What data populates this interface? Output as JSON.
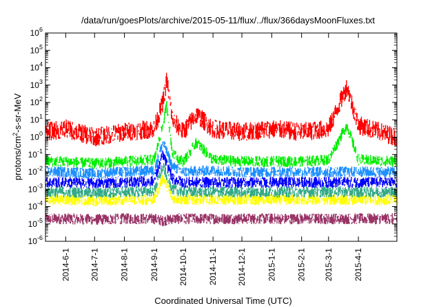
{
  "chart_data": {
    "type": "line",
    "title": "/data/run/goesPlots/archive/2015-05-11/flux/../flux/366daysMoonFluxes.txt",
    "xlabel": "Coordinated Universal Time (UTC)",
    "ylabel_parts": {
      "base": "protons/cm",
      "sup": "2",
      "rest": "-s-sr-MeV"
    },
    "x_range": [
      "2014-05-11",
      "2015-05-11"
    ],
    "x_tick_labels": [
      "2014-6-1",
      "2014-7-1",
      "2014-8-1",
      "2014-9-1",
      "2014-10-1",
      "2014-11-1",
      "2014-12-1",
      "2015-1-1",
      "2015-2-1",
      "2015-3-1",
      "2015-4-1"
    ],
    "y_scale": "log",
    "y_ticks": [
      {
        "base": "10",
        "exp": "-6"
      },
      {
        "base": "10",
        "exp": "-5"
      },
      {
        "base": "10",
        "exp": "-4"
      },
      {
        "base": "10",
        "exp": "-3"
      },
      {
        "base": "10",
        "exp": "-2"
      },
      {
        "base": "10",
        "exp": "-1"
      },
      {
        "base": "10",
        "exp": "0"
      },
      {
        "base": "10",
        "exp": "1"
      },
      {
        "base": "10",
        "exp": "2"
      },
      {
        "base": "10",
        "exp": "3"
      },
      {
        "base": "10",
        "exp": "4"
      },
      {
        "base": "10",
        "exp": "5"
      },
      {
        "base": "10",
        "exp": "6"
      }
    ],
    "ylim": [
      1e-06,
      1000000.0
    ],
    "grid": false,
    "legend": "none",
    "series": [
      {
        "color": "#993366",
        "points": [
          [
            "2014-05-11",
            2e-05
          ],
          [
            "2014-06-01",
            2e-05
          ],
          [
            "2014-07-01",
            1.8e-05
          ],
          [
            "2014-08-01",
            2e-05
          ],
          [
            "2014-09-01",
            2e-05
          ],
          [
            "2014-09-10",
            1.5e-05
          ],
          [
            "2014-09-20",
            2e-05
          ],
          [
            "2014-10-01",
            2e-05
          ],
          [
            "2014-11-01",
            2e-05
          ],
          [
            "2014-12-01",
            2e-05
          ],
          [
            "2015-01-01",
            2e-05
          ],
          [
            "2015-02-01",
            2e-05
          ],
          [
            "2015-03-01",
            2e-05
          ],
          [
            "2015-04-01",
            2e-05
          ],
          [
            "2015-05-11",
            2e-05
          ]
        ]
      },
      {
        "color": "#ffff00",
        "points": [
          [
            "2014-05-11",
            0.00025
          ],
          [
            "2014-06-01",
            0.00025
          ],
          [
            "2014-07-01",
            0.00022
          ],
          [
            "2014-08-01",
            0.00025
          ],
          [
            "2014-09-01",
            0.00025
          ],
          [
            "2014-09-10",
            0.005
          ],
          [
            "2014-09-20",
            0.0003
          ],
          [
            "2014-10-01",
            0.00025
          ],
          [
            "2014-11-01",
            0.00025
          ],
          [
            "2014-12-01",
            0.00025
          ],
          [
            "2015-01-01",
            0.00025
          ],
          [
            "2015-02-01",
            0.00025
          ],
          [
            "2015-03-01",
            0.00025
          ],
          [
            "2015-04-01",
            0.00025
          ],
          [
            "2015-05-11",
            0.00025
          ]
        ]
      },
      {
        "color": "#33aa88",
        "points": [
          [
            "2014-05-11",
            0.0007
          ],
          [
            "2014-06-01",
            0.0007
          ],
          [
            "2014-07-01",
            0.0006
          ],
          [
            "2014-08-01",
            0.0007
          ],
          [
            "2014-09-01",
            0.0008
          ],
          [
            "2014-09-10",
            0.02
          ],
          [
            "2014-09-20",
            0.001
          ],
          [
            "2014-10-01",
            0.0007
          ],
          [
            "2014-11-01",
            0.0007
          ],
          [
            "2014-12-01",
            0.0007
          ],
          [
            "2015-01-01",
            0.0007
          ],
          [
            "2015-02-01",
            0.0007
          ],
          [
            "2015-03-01",
            0.0007
          ],
          [
            "2015-04-01",
            0.0007
          ],
          [
            "2015-05-11",
            0.0007
          ]
        ]
      },
      {
        "color": "#0000ff",
        "points": [
          [
            "2014-05-11",
            0.0025
          ],
          [
            "2014-06-01",
            0.0025
          ],
          [
            "2014-07-01",
            0.0022
          ],
          [
            "2014-08-01",
            0.0025
          ],
          [
            "2014-09-01",
            0.003
          ],
          [
            "2014-09-10",
            0.1
          ],
          [
            "2014-09-20",
            0.004
          ],
          [
            "2014-10-01",
            0.0025
          ],
          [
            "2014-11-01",
            0.0025
          ],
          [
            "2014-12-01",
            0.0025
          ],
          [
            "2015-01-01",
            0.0025
          ],
          [
            "2015-02-01",
            0.0025
          ],
          [
            "2015-03-01",
            0.0025
          ],
          [
            "2015-04-01",
            0.0025
          ],
          [
            "2015-05-11",
            0.0025
          ]
        ]
      },
      {
        "color": "#1e90ff",
        "points": [
          [
            "2014-05-11",
            0.01
          ],
          [
            "2014-06-01",
            0.01
          ],
          [
            "2014-07-01",
            0.008
          ],
          [
            "2014-08-01",
            0.01
          ],
          [
            "2014-09-01",
            0.012
          ],
          [
            "2014-09-10",
            0.5
          ],
          [
            "2014-09-20",
            0.02
          ],
          [
            "2014-10-01",
            0.01
          ],
          [
            "2014-11-01",
            0.012
          ],
          [
            "2014-12-01",
            0.01
          ],
          [
            "2015-01-01",
            0.01
          ],
          [
            "2015-02-01",
            0.01
          ],
          [
            "2015-03-01",
            0.01
          ],
          [
            "2015-04-01",
            0.01
          ],
          [
            "2015-05-11",
            0.01
          ]
        ]
      },
      {
        "color": "#00ee00",
        "points": [
          [
            "2014-05-11",
            0.04
          ],
          [
            "2014-06-01",
            0.04
          ],
          [
            "2014-07-01",
            0.03
          ],
          [
            "2014-08-01",
            0.04
          ],
          [
            "2014-09-01",
            0.05
          ],
          [
            "2014-09-10",
            5
          ],
          [
            "2014-09-14",
            80
          ],
          [
            "2014-09-20",
            0.1
          ],
          [
            "2014-10-01",
            0.04
          ],
          [
            "2014-10-15",
            0.5
          ],
          [
            "2014-11-01",
            0.05
          ],
          [
            "2014-12-01",
            0.04
          ],
          [
            "2015-01-01",
            0.04
          ],
          [
            "2015-02-01",
            0.04
          ],
          [
            "2015-03-01",
            0.05
          ],
          [
            "2015-03-20",
            5
          ],
          [
            "2015-04-01",
            0.05
          ],
          [
            "2015-05-11",
            0.04
          ]
        ]
      },
      {
        "color": "#ff0000",
        "points": [
          [
            "2014-05-11",
            2
          ],
          [
            "2014-06-01",
            3
          ],
          [
            "2014-07-01",
            1
          ],
          [
            "2014-08-01",
            2
          ],
          [
            "2014-09-01",
            3
          ],
          [
            "2014-09-10",
            100
          ],
          [
            "2014-09-14",
            2000
          ],
          [
            "2014-09-20",
            10
          ],
          [
            "2014-10-01",
            2
          ],
          [
            "2014-10-15",
            20
          ],
          [
            "2014-11-01",
            3
          ],
          [
            "2014-12-01",
            2
          ],
          [
            "2015-01-01",
            3
          ],
          [
            "2015-02-01",
            2
          ],
          [
            "2015-03-01",
            3
          ],
          [
            "2015-03-20",
            800
          ],
          [
            "2015-04-01",
            5
          ],
          [
            "2015-05-11",
            1
          ]
        ]
      }
    ]
  }
}
